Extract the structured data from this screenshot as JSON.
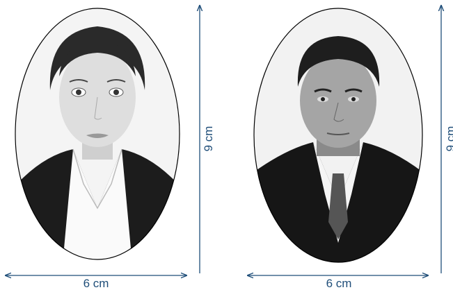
{
  "figures": [
    {
      "width_label": "6 cm",
      "height_label": "9 cm"
    },
    {
      "width_label": "6 cm",
      "height_label": "9 cm"
    }
  ]
}
